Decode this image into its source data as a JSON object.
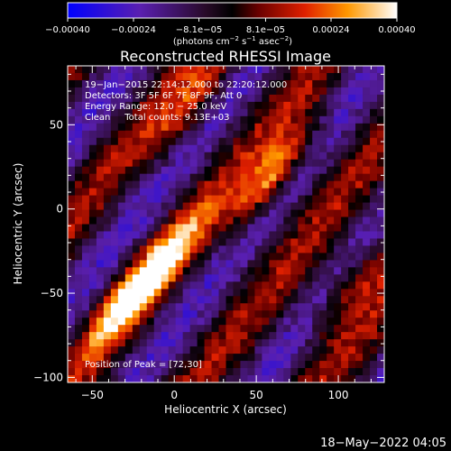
{
  "chart_data": {
    "type": "heatmap",
    "title": "Reconstructed RHESSI Image",
    "xlabel": "Heliocentric X (arcsec)",
    "ylabel": "Heliocentric Y (arcsec)",
    "xlim": [
      -65,
      128
    ],
    "ylim": [
      -103,
      85
    ],
    "x_ticks": [
      -50,
      0,
      50,
      100
    ],
    "y_ticks": [
      -100,
      -50,
      0,
      50
    ],
    "x_tick_labels": [
      "−50",
      "0",
      "50",
      "100"
    ],
    "y_tick_labels": [
      "−100",
      "−50",
      "0",
      "50"
    ],
    "colorbar": {
      "range": [
        -0.0004,
        0.0004
      ],
      "ticks": [
        -0.0004,
        -0.00024,
        -8.1e-05,
        8.1e-05,
        0.00024,
        0.0004
      ],
      "tick_labels": [
        "−0.00040",
        "−0.00024",
        "−8.1e−05",
        "8.1e−05",
        "0.00024",
        "0.00040"
      ],
      "units_main": "(photons cm",
      "units_exp1": "−2",
      "units_mid": " s",
      "units_exp2": "−1",
      "units_mid2": " asec",
      "units_exp3": "−2",
      "units_end": ")"
    },
    "info_lines": [
      "19−Jan−2015 22:14:12.000 to 22:20:12.000",
      "Detectors: 3F 5F 6F 7F 8F 9F, Att 0",
      "Energy Range: 12.0 − 25.0 keV",
      "Clean     Total counts: 9.13E+03"
    ],
    "peak_label": "Position of Peak = [72,30]",
    "peak": [
      72,
      30
    ],
    "ridges": [
      {
        "x": 60,
        "y": 20,
        "intensity": 0.0004
      },
      {
        "x": -5,
        "y": -30,
        "intensity": 0.00028
      },
      {
        "x": -30,
        "y": -55,
        "intensity": 0.0003
      },
      {
        "x": 10,
        "y": 60,
        "intensity": 0.00022
      },
      {
        "x": 110,
        "y": -45,
        "intensity": 0.00024
      }
    ]
  },
  "footer": {
    "date": "18−May−2022 04:05"
  },
  "colors": {
    "background": "#000000",
    "text": "#ffffff"
  }
}
